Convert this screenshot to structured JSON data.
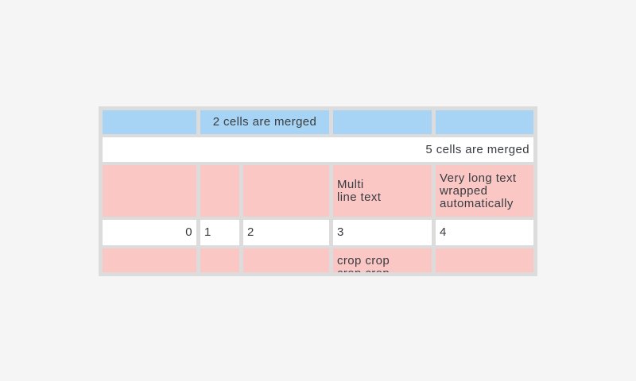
{
  "colors": {
    "page_bg": "#f5f5f5",
    "frame_gray": "#dcdcdc",
    "header_blue": "#a7d4f4",
    "row_pink": "#fac7c5",
    "row_white": "#ffffff",
    "text": "#383c41"
  },
  "table": {
    "rows": [
      {
        "kind": "header-row",
        "cells": [
          {
            "text": ""
          },
          {
            "text": "2 cells are merged",
            "merged": 2,
            "align": "center"
          },
          {
            "text": ""
          },
          {
            "text": ""
          }
        ]
      },
      {
        "kind": "full-merged-row",
        "cells": [
          {
            "text": "5 cells are merged",
            "merged": 5,
            "align": "right"
          }
        ]
      },
      {
        "kind": "pink-row",
        "cells": [
          {
            "text": ""
          },
          {
            "text": ""
          },
          {
            "text": ""
          },
          {
            "text": "Multi\nline text"
          },
          {
            "text": "Very long text wrapped automatically"
          }
        ]
      },
      {
        "kind": "number-row",
        "cells": [
          {
            "text": "0",
            "align": "right"
          },
          {
            "text": "1"
          },
          {
            "text": "2"
          },
          {
            "text": "3"
          },
          {
            "text": "4"
          }
        ]
      },
      {
        "kind": "cropped-pink-row",
        "cells": [
          {
            "text": ""
          },
          {
            "text": ""
          },
          {
            "text": ""
          },
          {
            "text": "crop crop\ncrop crop",
            "cropped": true
          },
          {
            "text": ""
          }
        ]
      }
    ]
  }
}
